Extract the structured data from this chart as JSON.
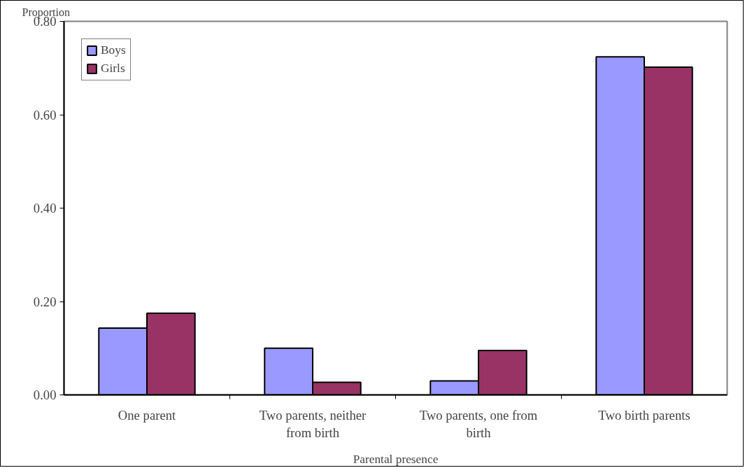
{
  "chart_data": {
    "type": "bar",
    "ylabel": "Proportion",
    "xlabel": "Parental presence",
    "categories": [
      "One parent",
      "Two parents, neither from birth",
      "Two parents, one from birth",
      "Two birth parents"
    ],
    "series": [
      {
        "name": "Boys",
        "color": "#9999ff",
        "values": [
          0.143,
          0.1,
          0.03,
          0.724
        ]
      },
      {
        "name": "Girls",
        "color": "#993366",
        "values": [
          0.175,
          0.027,
          0.095,
          0.702
        ]
      }
    ],
    "ylim": [
      0,
      0.8
    ],
    "yticks": [
      {
        "value": 0,
        "label": "0.00"
      },
      {
        "value": 0.2,
        "label": "0.20"
      },
      {
        "value": 0.4,
        "label": "0.40"
      },
      {
        "value": 0.6,
        "label": "0.60"
      },
      {
        "value": 0.8,
        "label": "0.80"
      }
    ],
    "grid": false,
    "legend": "top left"
  }
}
